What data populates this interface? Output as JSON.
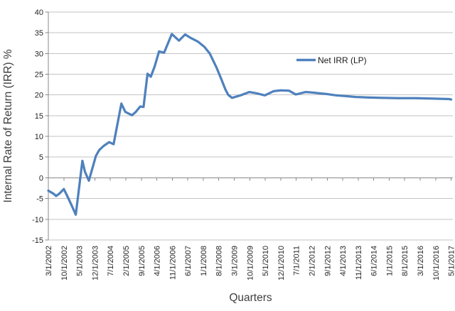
{
  "chart_data": {
    "type": "line",
    "title": "",
    "xlabel": "Quarters",
    "ylabel": "Internal Rate of Return (IRR) %",
    "ylim": [
      -15,
      40
    ],
    "y_ticks": [
      40,
      35,
      30,
      25,
      20,
      15,
      10,
      5,
      0,
      -5,
      -10,
      -15
    ],
    "grid": "horizontal-only",
    "x_axis_note": "monthly categories from 3/1/2002 to 5/1/2017, tick label every 7th month",
    "x_index_range": [
      0,
      182
    ],
    "months_per_x_tick": 7,
    "x_tick_labels": [
      "3/1/2002",
      "10/1/2002",
      "5/1/2003",
      "12/1/2003",
      "7/1/2004",
      "2/1/2005",
      "9/1/2005",
      "4/1/2006",
      "11/1/2006",
      "6/1/2007",
      "1/1/2008",
      "8/1/2008",
      "3/1/2009",
      "10/1/2009",
      "5/1/2010",
      "12/1/2010",
      "7/1/2011",
      "2/1/2012",
      "9/1/2012",
      "4/1/2013",
      "11/1/2013",
      "6/1/2014",
      "1/1/2015",
      "8/1/2015",
      "3/1/2016",
      "10/1/2016",
      "5/1/2017"
    ],
    "legend": {
      "label": "Net IRR (LP)",
      "position": "center-right-inside"
    },
    "series": [
      {
        "name": "Net IRR (LP)",
        "color": "#4F81BD",
        "points": [
          [
            0,
            -3.1
          ],
          [
            2.5,
            -3.9
          ],
          [
            3.5,
            -4.4
          ],
          [
            5,
            -3.8
          ],
          [
            7,
            -2.7
          ],
          [
            9,
            -4.9
          ],
          [
            11,
            -7.2
          ],
          [
            12.4,
            -8.9
          ],
          [
            15.4,
            4.1
          ],
          [
            16.5,
            1.5
          ],
          [
            18.3,
            -0.7
          ],
          [
            20,
            2.5
          ],
          [
            21.5,
            5.3
          ],
          [
            23,
            6.7
          ],
          [
            25,
            7.7
          ],
          [
            27.5,
            8.6
          ],
          [
            29.5,
            8.1
          ],
          [
            33,
            17.9
          ],
          [
            34.8,
            15.9
          ],
          [
            37.8,
            15.1
          ],
          [
            39.5,
            15.9
          ],
          [
            41.5,
            17.2
          ],
          [
            43,
            17.1
          ],
          [
            44.8,
            25.1
          ],
          [
            46.3,
            24.4
          ],
          [
            48,
            26.8
          ],
          [
            50,
            30.5
          ],
          [
            52.3,
            30.2
          ],
          [
            55.8,
            34.7
          ],
          [
            59,
            33.1
          ],
          [
            61.8,
            34.6
          ],
          [
            64.5,
            33.7
          ],
          [
            67.5,
            32.9
          ],
          [
            70.5,
            31.6
          ],
          [
            72.9,
            30
          ],
          [
            76,
            26.6
          ],
          [
            78,
            24
          ],
          [
            80,
            21.3
          ],
          [
            81.3,
            20
          ],
          [
            83,
            19.3
          ],
          [
            86.8,
            19.9
          ],
          [
            90.8,
            20.7
          ],
          [
            94,
            20.4
          ],
          [
            97.8,
            19.9
          ],
          [
            101.8,
            20.9
          ],
          [
            105,
            21.1
          ],
          [
            108.8,
            21
          ],
          [
            111.8,
            20.1
          ],
          [
            116.3,
            20.7
          ],
          [
            119,
            20.6
          ],
          [
            122,
            20.4
          ],
          [
            126,
            20.2
          ],
          [
            130,
            19.9
          ],
          [
            134.5,
            19.7
          ],
          [
            139,
            19.5
          ],
          [
            144,
            19.4
          ],
          [
            150,
            19.3
          ],
          [
            158,
            19.2
          ],
          [
            166,
            19.2
          ],
          [
            174,
            19.1
          ],
          [
            181,
            19
          ],
          [
            182,
            18.9
          ]
        ]
      }
    ],
    "colors": {
      "series_line": "#4F81BD",
      "gridline": "#C3C3C3",
      "axis_line": "#898989",
      "tick_label_text": "#262626",
      "axis_title_text": "#3F3F3F",
      "legend_text": "#1A1A1A",
      "background": "#FFFFFF"
    }
  }
}
